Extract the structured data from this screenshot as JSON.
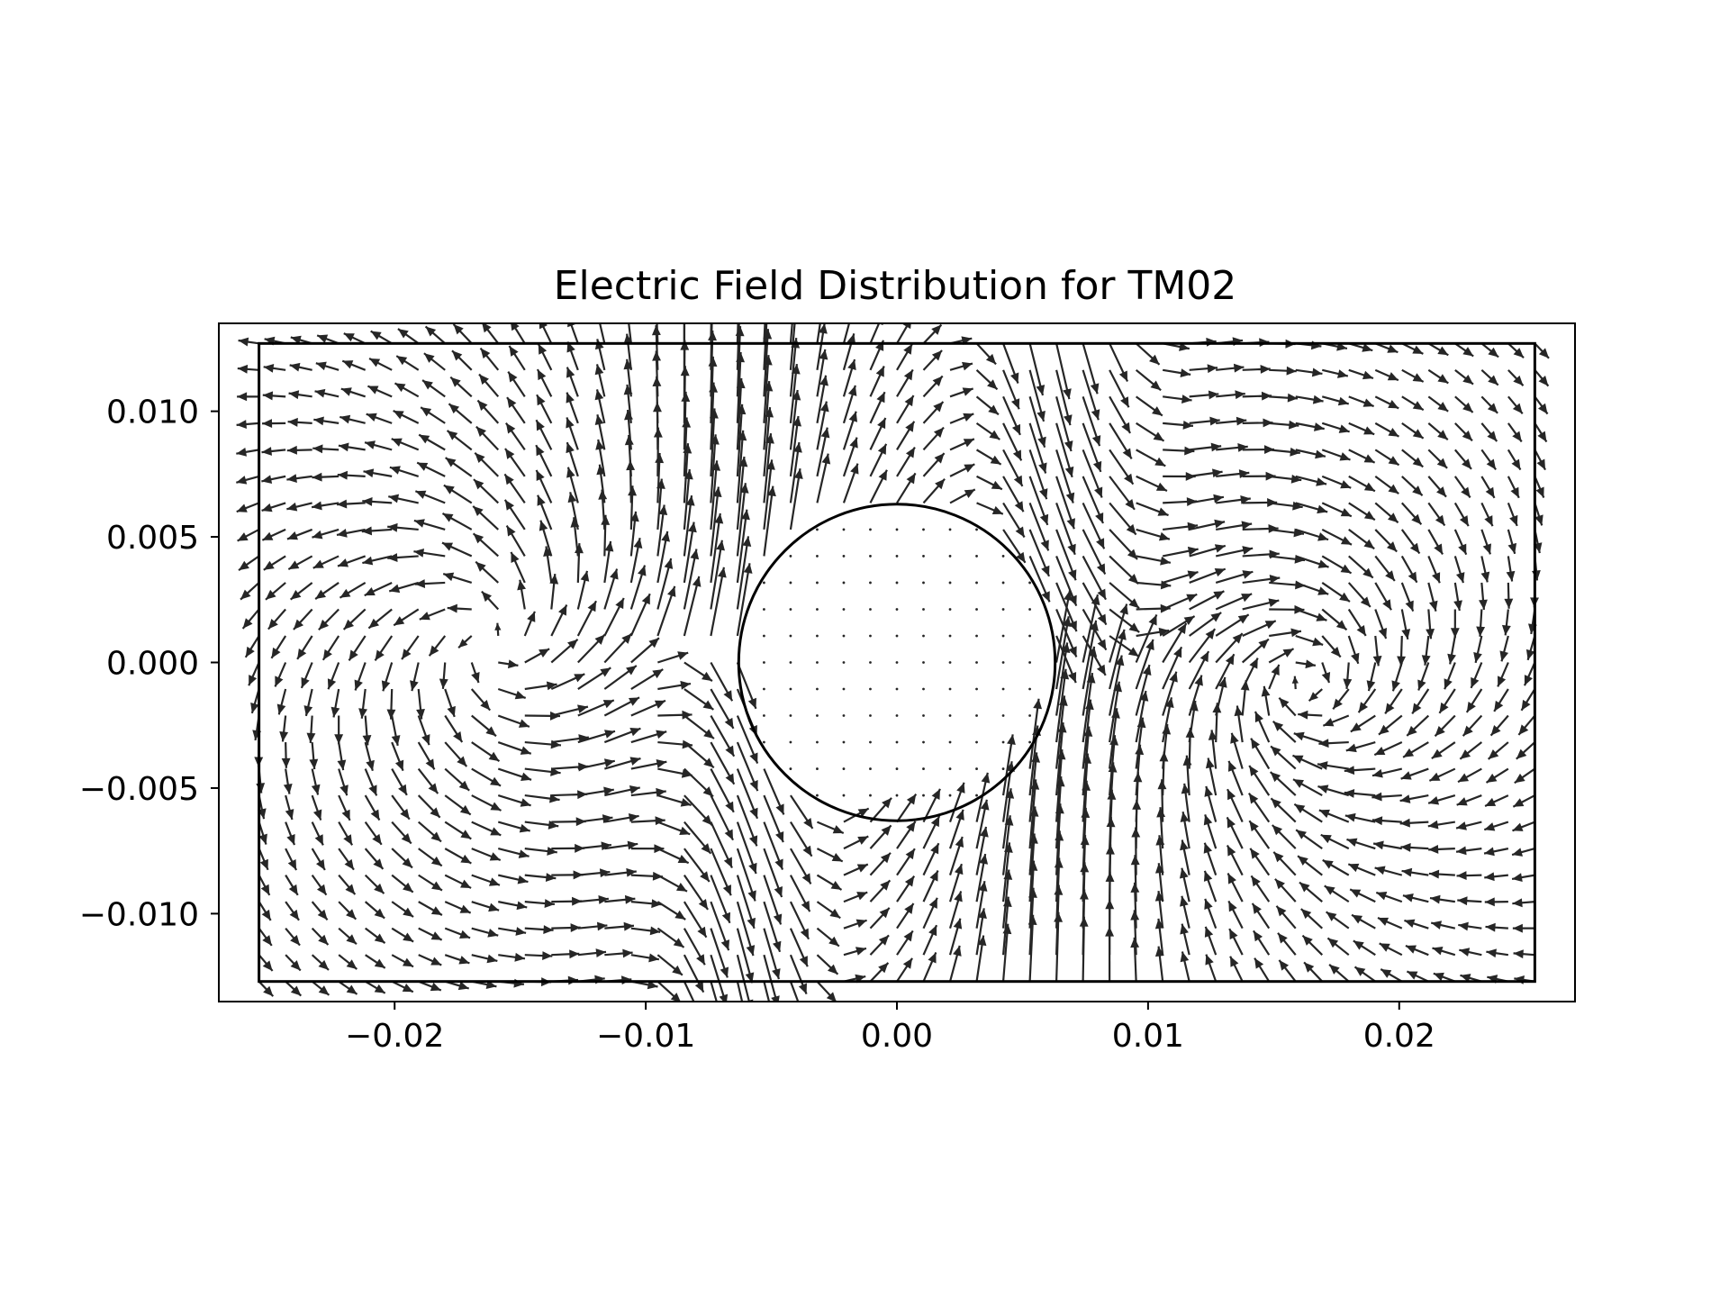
{
  "chart_data": {
    "type": "quiver",
    "title": "Electric Field Distribution for TM02",
    "xlabel": "",
    "ylabel": "",
    "xlim": [
      -0.027,
      0.027
    ],
    "ylim": [
      -0.0135,
      0.0135
    ],
    "x_ticks": [
      {
        "value": -0.02,
        "label": "−0.02"
      },
      {
        "value": -0.01,
        "label": "−0.01"
      },
      {
        "value": 0.0,
        "label": "0.00"
      },
      {
        "value": 0.01,
        "label": "0.01"
      },
      {
        "value": 0.02,
        "label": "0.02"
      }
    ],
    "y_ticks": [
      {
        "value": 0.01,
        "label": "0.010"
      },
      {
        "value": 0.005,
        "label": "0.005"
      },
      {
        "value": 0.0,
        "label": "0.000"
      },
      {
        "value": -0.005,
        "label": "−0.005"
      },
      {
        "value": -0.01,
        "label": "−0.010"
      }
    ],
    "waveguide": {
      "x_min": -0.0254,
      "x_max": 0.0254,
      "y_min": -0.0127,
      "y_max": 0.0127
    },
    "conductor": {
      "center_x": 0.0,
      "center_y": 0.0,
      "radius": 0.0063
    },
    "field_grid": {
      "x_min": -0.0254,
      "x_max": 0.0254,
      "nx": 49,
      "y_min": -0.0127,
      "y_max": 0.0127,
      "ny": 25
    },
    "grid": false,
    "arrow_color": "#262626",
    "outline_color": "#000000"
  }
}
